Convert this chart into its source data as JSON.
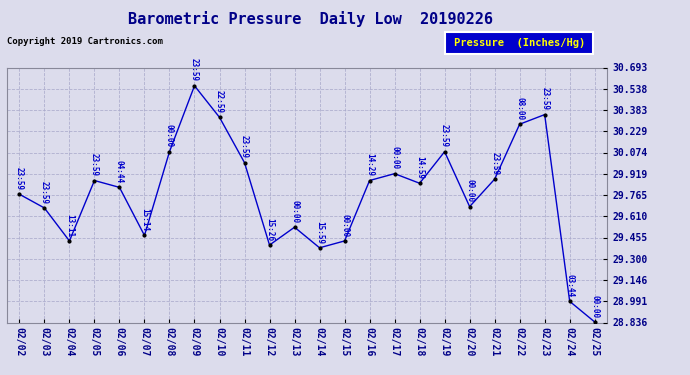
{
  "title": "Barometric Pressure  Daily Low  20190226",
  "copyright": "Copyright 2019 Cartronics.com",
  "legend_label": "Pressure  (Inches/Hg)",
  "dates": [
    "02/02",
    "02/03",
    "02/04",
    "02/05",
    "02/06",
    "02/07",
    "02/08",
    "02/09",
    "02/10",
    "02/11",
    "02/12",
    "02/13",
    "02/14",
    "02/15",
    "02/16",
    "02/17",
    "02/18",
    "02/19",
    "02/20",
    "02/21",
    "02/22",
    "02/23",
    "02/24",
    "02/25"
  ],
  "values": [
    29.77,
    29.67,
    29.43,
    29.87,
    29.82,
    29.47,
    30.08,
    30.56,
    30.33,
    30.0,
    29.4,
    29.53,
    29.38,
    29.43,
    29.87,
    29.92,
    29.85,
    30.08,
    29.68,
    29.88,
    30.28,
    30.35,
    28.99,
    28.84
  ],
  "times": [
    "23:59",
    "23:59",
    "13:11",
    "23:59",
    "04:44",
    "15:14",
    "00:00",
    "23:59",
    "22:59",
    "23:59",
    "15:26",
    "00:00",
    "15:59",
    "00:00",
    "14:29",
    "00:00",
    "14:59",
    "23:59",
    "00:00",
    "23:59",
    "08:00",
    "23:59",
    "03:44",
    "00:00"
  ],
  "ylim_min": 28.836,
  "ylim_max": 30.693,
  "yticks": [
    28.836,
    28.991,
    29.146,
    29.3,
    29.455,
    29.61,
    29.765,
    29.919,
    30.074,
    30.229,
    30.383,
    30.538,
    30.693
  ],
  "line_color": "#0000CC",
  "marker_color": "#000000",
  "bg_color": "#DCDCEC",
  "grid_color": "#AAAACC",
  "title_color": "#000088",
  "label_color": "#0000CC",
  "legend_bg": "#0000CC",
  "legend_text_color": "#FFFF00",
  "copyright_color": "#000000"
}
